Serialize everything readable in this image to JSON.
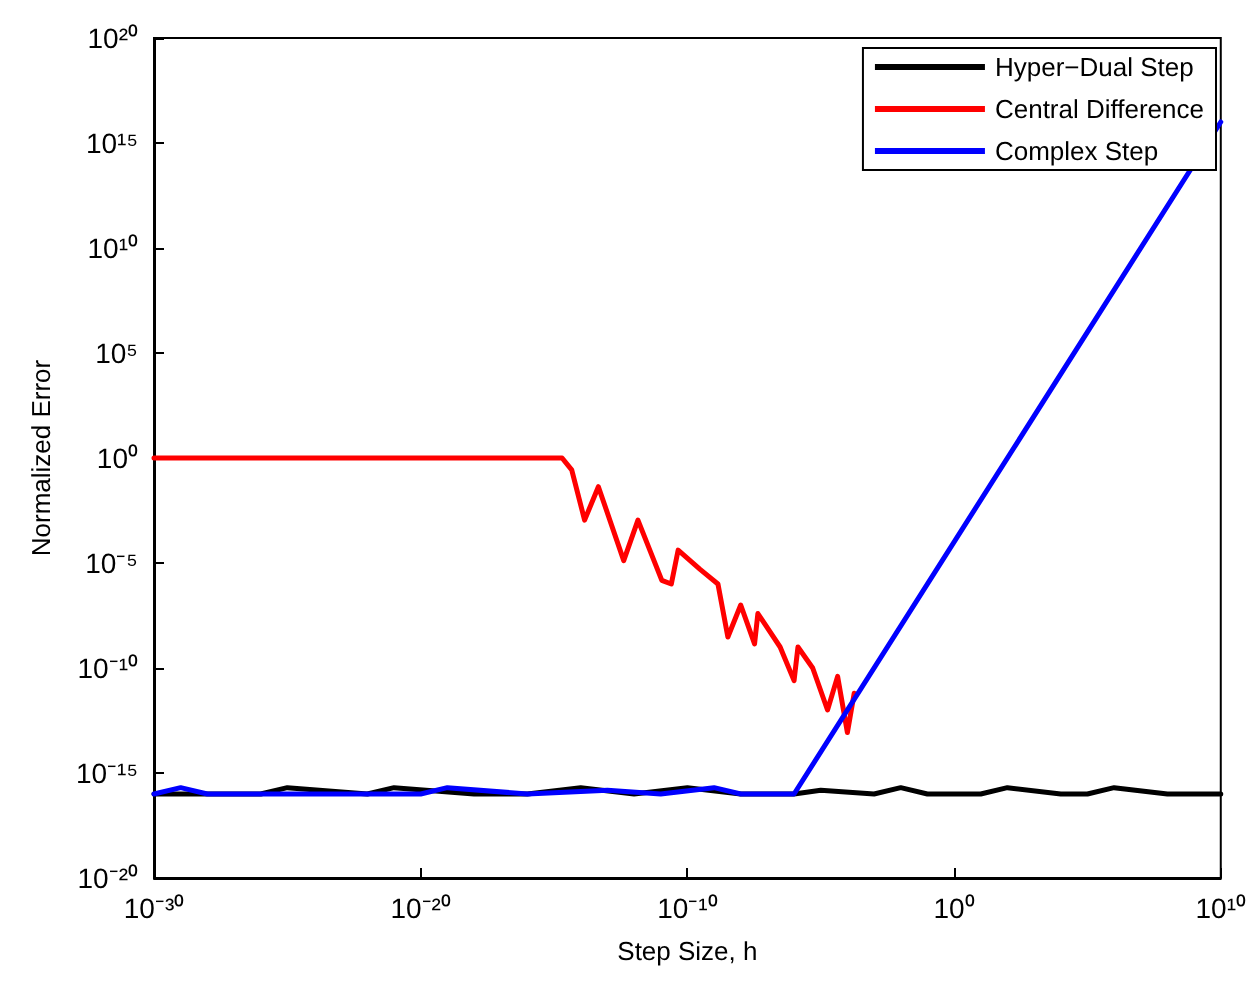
{
  "chart_data": {
    "type": "line",
    "xlabel": "Step Size, h",
    "ylabel": "Normalized Error",
    "log": "xy",
    "grid": false,
    "legend": "top right",
    "marker": "none",
    "line_style": "solid",
    "xlim": [
      1e-30,
      10000000000.0
    ],
    "xticks": [
      {
        "value": 1e-30,
        "label": "10⁻³⁰"
      },
      {
        "value": 1e-20,
        "label": "10⁻²⁰"
      },
      {
        "value": 1e-10,
        "label": "10⁻¹⁰"
      },
      {
        "value": 1,
        "label": "10⁰"
      },
      {
        "value": 10000000000.0,
        "label": "10¹⁰"
      }
    ],
    "ylim": [
      1e-20,
      1e+20
    ],
    "yticks": [
      {
        "value": 1e-20,
        "label": "10⁻²⁰"
      },
      {
        "value": 1e-15,
        "label": "10⁻¹⁵"
      },
      {
        "value": 1e-10,
        "label": "10⁻¹⁰"
      },
      {
        "value": 1e-05,
        "label": "10⁻⁵"
      },
      {
        "value": 1,
        "label": "10⁰"
      },
      {
        "value": 100000.0,
        "label": "10⁵"
      },
      {
        "value": 10000000000.0,
        "label": "10¹⁰"
      },
      {
        "value": 1000000000000000.0,
        "label": "10¹⁵"
      },
      {
        "value": 1e+20,
        "label": "10²⁰"
      }
    ],
    "series": [
      {
        "name": "Hyper−Dual Step",
        "color": "#000000",
        "x": [
          1e-30,
          1e-26,
          1e-25,
          1e-22,
          1e-21,
          1e-18,
          1e-16,
          1e-14,
          1e-12,
          1e-10,
          1e-08,
          1e-06,
          1e-05,
          0.001,
          0.01,
          0.1,
          1,
          10,
          100,
          10000.0,
          100000.0,
          1000000.0,
          100000000.0,
          10000000000.0
        ],
        "values": [
          1e-16,
          1e-16,
          2e-16,
          1e-16,
          2e-16,
          1e-16,
          1e-16,
          2e-16,
          1e-16,
          2e-16,
          1e-16,
          1e-16,
          1.5e-16,
          1e-16,
          2e-16,
          1e-16,
          1e-16,
          1e-16,
          2e-16,
          1e-16,
          1e-16,
          2e-16,
          1e-16,
          1e-16
        ]
      },
      {
        "name": "Central Difference",
        "color": "#ff0000",
        "x": [
          1e-30,
          2e-15,
          4.6e-15,
          1.4e-14,
          4.6e-14,
          4.1e-13,
          1.4e-12,
          1.1e-11,
          2.5e-11,
          4.5e-11,
          3e-10,
          1.4e-09,
          3.3e-09,
          1e-08,
          3.3e-08,
          4.4e-08,
          3e-07,
          1e-06,
          1.4e-06,
          5e-06,
          1.8e-05,
          4.3e-05,
          0.0001,
          0.00018
        ],
        "values": [
          1,
          1,
          0.27,
          0.0011,
          0.043,
          1.3e-05,
          0.0011,
          1.5e-06,
          1e-06,
          4.1e-05,
          5e-06,
          1e-06,
          3e-09,
          1e-07,
          1.4e-09,
          3.9e-08,
          1e-09,
          2.5e-11,
          1e-09,
          1e-10,
          1e-12,
          4e-11,
          8.5e-14,
          6.3e-12
        ]
      },
      {
        "name": "Complex Step",
        "color": "#0000ff",
        "x": [
          1e-30,
          1e-29,
          1e-28,
          1e-24,
          1e-20,
          1e-19,
          1e-16,
          1e-13,
          1e-11,
          1e-09,
          1e-08,
          1e-06,
          10000000000.0
        ],
        "values": [
          1e-16,
          2e-16,
          1e-16,
          1e-16,
          1e-16,
          2e-16,
          1e-16,
          1.5e-16,
          1e-16,
          2e-16,
          1e-16,
          1e-16,
          1e+16
        ]
      }
    ]
  }
}
